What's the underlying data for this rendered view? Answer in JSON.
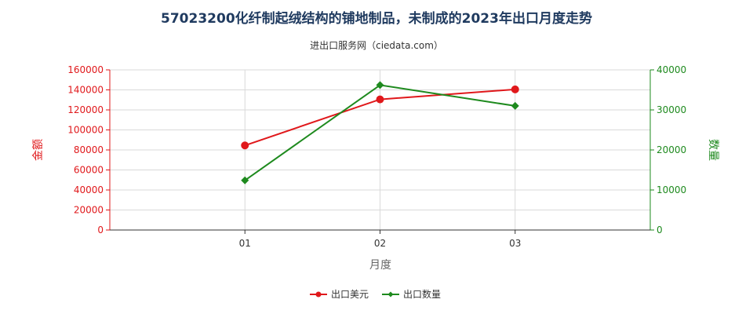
{
  "chart_data": {
    "type": "line",
    "title": "57023200化纤制起绒结构的铺地制品，未制成的2023年出口月度走势",
    "subtitle": "进出口服务网（ciedata.com）",
    "xlabel": "月度",
    "ylabel_left": "金额",
    "ylabel_right": "数量",
    "categories": [
      "01",
      "02",
      "03"
    ],
    "ylim_left": [
      0,
      160000
    ],
    "ylim_right": [
      0,
      40000
    ],
    "yticks_left": [
      0,
      20000,
      40000,
      60000,
      80000,
      100000,
      120000,
      140000,
      160000
    ],
    "yticks_right": [
      0,
      10000,
      20000,
      30000,
      40000
    ],
    "grid": true,
    "legend_placement": "bottom-center",
    "series": [
      {
        "name": "出口美元",
        "axis": "left",
        "color": "#e0181b",
        "marker": "circle",
        "values": [
          84500,
          130500,
          140500
        ]
      },
      {
        "name": "出口数量",
        "axis": "right",
        "color": "#1e8a1e",
        "marker": "diamond",
        "values": [
          12400,
          36200,
          31000
        ]
      }
    ]
  }
}
